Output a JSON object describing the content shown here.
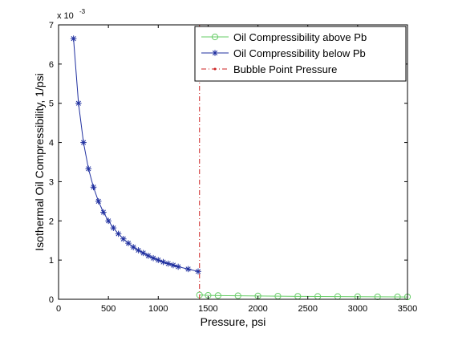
{
  "chart_data": {
    "type": "line",
    "title": "",
    "xlabel": "Pressure, psi",
    "ylabel": "Isothermal Oil Compressibility, 1/psi",
    "y_exponent_label": "x 10",
    "y_exponent_power": "-3",
    "xlim": [
      0,
      3500
    ],
    "ylim": [
      0,
      7
    ],
    "x_ticks": [
      0,
      500,
      1000,
      1500,
      2000,
      2500,
      3000,
      3500
    ],
    "x_tick_labels": [
      "0",
      "500",
      "1000",
      "1500",
      "2000",
      "2500",
      "3000",
      "3500"
    ],
    "y_ticks": [
      0,
      1,
      2,
      3,
      4,
      5,
      6,
      7
    ],
    "y_tick_labels": [
      "0",
      "1",
      "2",
      "3",
      "4",
      "5",
      "6",
      "7"
    ],
    "grid": false,
    "legend_position": "top-right",
    "series": [
      {
        "name": "Oil Compressibility above Pb",
        "color": "#66cc66",
        "marker": "circle",
        "x": [
          1414,
          1500,
          1600,
          1800,
          2000,
          2200,
          2400,
          2600,
          2800,
          3000,
          3200,
          3400,
          3500
        ],
        "y": [
          0.11,
          0.1,
          0.095,
          0.09,
          0.085,
          0.08,
          0.075,
          0.072,
          0.069,
          0.066,
          0.063,
          0.061,
          0.06
        ]
      },
      {
        "name": "Oil Compressibility below Pb",
        "color": "#1f2f9f",
        "marker": "star",
        "x": [
          150,
          200,
          250,
          300,
          350,
          400,
          450,
          500,
          550,
          600,
          650,
          700,
          750,
          800,
          850,
          900,
          950,
          1000,
          1050,
          1100,
          1150,
          1200,
          1300,
          1400
        ],
        "y": [
          6.65,
          5.0,
          4.0,
          3.33,
          2.86,
          2.5,
          2.22,
          2.0,
          1.82,
          1.67,
          1.54,
          1.43,
          1.33,
          1.25,
          1.18,
          1.11,
          1.05,
          1.0,
          0.95,
          0.91,
          0.87,
          0.83,
          0.77,
          0.71
        ]
      },
      {
        "name": "Bubble Point Pressure",
        "color": "#cc2222",
        "marker": "none",
        "line_style": "dash-dot",
        "x": [
          1414,
          1414
        ],
        "y": [
          0,
          7
        ]
      }
    ]
  }
}
